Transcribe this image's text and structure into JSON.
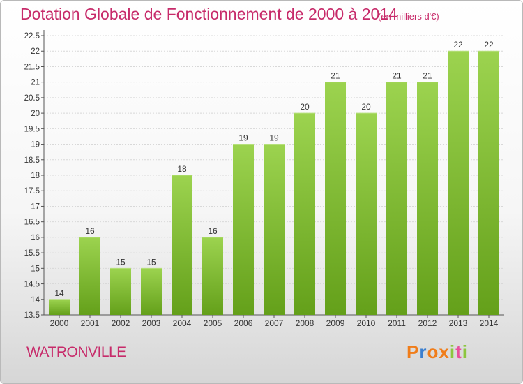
{
  "header": {
    "title": "Dotation Globale de Fonctionnement de 2000 à 2014",
    "unit": "(en milliers d'€)"
  },
  "footer": {
    "commune": "WATRONVILLE",
    "brand": "Proxiti"
  },
  "colors": {
    "title": "#c72b6a",
    "bar_top": "#9cd34f",
    "bar_bottom": "#64a01a",
    "brand": [
      "#f07d1a",
      "#3b7fcf",
      "#f07d1a",
      "#f07d1a",
      "#8cc63f",
      "#e94f9b",
      "#8cc63f"
    ]
  },
  "chart_data": {
    "type": "bar",
    "categories": [
      "2000",
      "2001",
      "2002",
      "2003",
      "2004",
      "2005",
      "2006",
      "2007",
      "2008",
      "2009",
      "2010",
      "2011",
      "2012",
      "2013",
      "2014"
    ],
    "values": [
      14,
      16,
      15,
      15,
      18,
      16,
      19,
      19,
      20,
      21,
      20,
      21,
      21,
      22,
      22
    ],
    "data_labels": [
      "14",
      "16",
      "15",
      "15",
      "18",
      "16",
      "19",
      "19",
      "20",
      "21",
      "20",
      "21",
      "21",
      "22",
      "22"
    ],
    "ylim": [
      13.5,
      22.5
    ],
    "yticks": [
      "13.5",
      "14",
      "14.5",
      "15",
      "15.5",
      "16",
      "16.5",
      "17",
      "17.5",
      "18",
      "18.5",
      "19",
      "19.5",
      "20",
      "20.5",
      "21",
      "21.5",
      "22",
      "22.5"
    ],
    "grid": true,
    "legend": "none"
  }
}
